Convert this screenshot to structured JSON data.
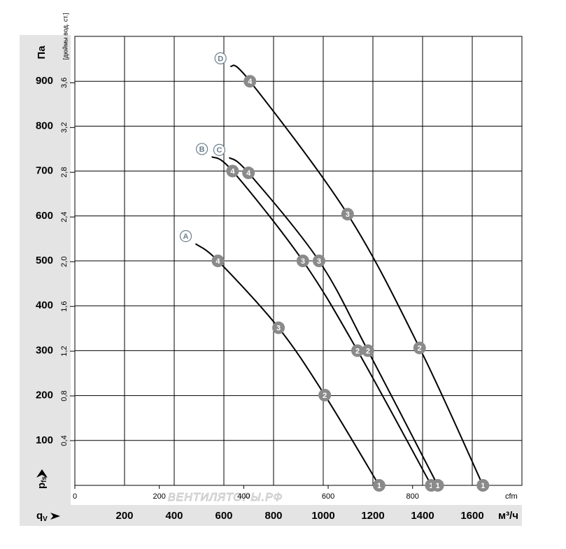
{
  "chart_data": {
    "type": "line",
    "y_label": "Па",
    "y2_label": "[дюймы вод. ст.]",
    "y_symbol": {
      "main": "p",
      "sub": "fs"
    },
    "x_symbol": {
      "main": "q",
      "sub": "V"
    },
    "x_unit": "м³/ч",
    "x2_unit": "cfm",
    "watermark": "ВЕНТИЛЯТОРЫ.РФ",
    "xlim": [
      0,
      1800
    ],
    "xticks": [
      200,
      400,
      600,
      800,
      1000,
      1200,
      1400,
      1600
    ],
    "ylim": [
      0,
      1000
    ],
    "yticks": [
      100,
      200,
      300,
      400,
      500,
      600,
      700,
      800,
      900
    ],
    "x2lim": [
      0,
      1059
    ],
    "x2ticks": [
      0,
      200,
      400,
      600,
      800
    ],
    "y2lim": [
      0,
      4.015
    ],
    "y2ticks": [
      {
        "value": 0.4,
        "label": "0,4"
      },
      {
        "value": 0.8,
        "label": "0,8"
      },
      {
        "value": 1.2,
        "label": "1,2"
      },
      {
        "value": 1.6,
        "label": "1,6"
      },
      {
        "value": 2.0,
        "label": "2,0"
      },
      {
        "value": 2.4,
        "label": "2,4"
      },
      {
        "value": 2.8,
        "label": "2,8"
      },
      {
        "value": 3.2,
        "label": "3,2"
      },
      {
        "value": 3.6,
        "label": "3,6"
      }
    ],
    "grid": true,
    "series": [
      {
        "name": "A",
        "color": "#000000",
        "x": [
          486,
          576,
          820,
          1006,
          1225
        ],
        "values": [
          538,
          500,
          351,
          201,
          0
        ],
        "point_labels": [
          null,
          "4",
          "3",
          "2",
          "1"
        ]
      },
      {
        "name": "B",
        "color": "#000000",
        "x": [
          551,
          635,
          918,
          1138,
          1435
        ],
        "values": [
          732,
          700,
          500,
          300,
          0
        ],
        "point_labels": [
          null,
          "4",
          "3",
          "2",
          "1"
        ]
      },
      {
        "name": "C",
        "color": "#000000",
        "x": [
          621,
          699,
          983,
          1180,
          1461
        ],
        "values": [
          730,
          696,
          500,
          300,
          0
        ],
        "point_labels": [
          null,
          "4",
          "3",
          "2",
          "1"
        ]
      },
      {
        "name": "D",
        "color": "#000000",
        "x": [
          626,
          705,
          1098,
          1388,
          1643
        ],
        "values": [
          934,
          900,
          604,
          306,
          0
        ],
        "point_labels": [
          null,
          "4",
          "3",
          "2",
          "1"
        ]
      }
    ]
  }
}
